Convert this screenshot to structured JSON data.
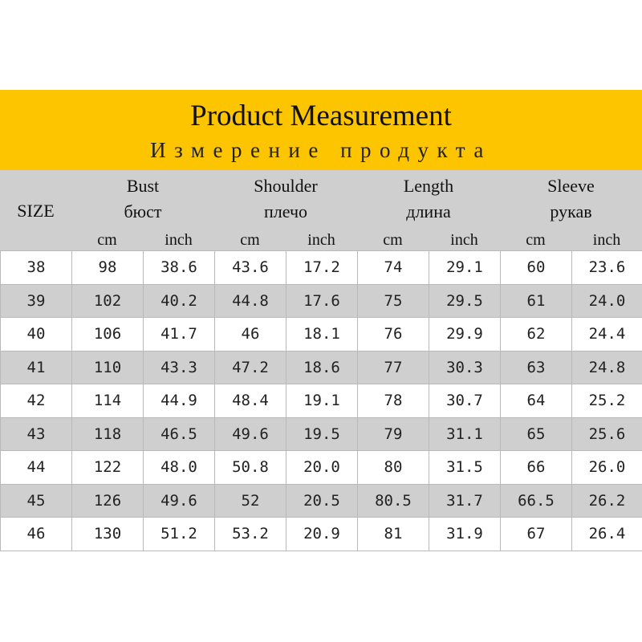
{
  "header": {
    "title": "Product Measurement",
    "subtitle": "Измерение продукта",
    "size_label": "SIZE",
    "groups": [
      {
        "name": "Bust",
        "name_ru": "бюст"
      },
      {
        "name": "Shoulder",
        "name_ru": "плечо"
      },
      {
        "name": "Length",
        "name_ru": "длина"
      },
      {
        "name": "Sleeve",
        "name_ru": "рукав"
      }
    ],
    "units": [
      "cm",
      "inch",
      "cm",
      "inch",
      "cm",
      "inch",
      "cm",
      "inch"
    ]
  },
  "rows": [
    [
      "38",
      "98",
      "38.6",
      "43.6",
      "17.2",
      "74",
      "29.1",
      "60",
      "23.6"
    ],
    [
      "39",
      "102",
      "40.2",
      "44.8",
      "17.6",
      "75",
      "29.5",
      "61",
      "24.0"
    ],
    [
      "40",
      "106",
      "41.7",
      "46",
      "18.1",
      "76",
      "29.9",
      "62",
      "24.4"
    ],
    [
      "41",
      "110",
      "43.3",
      "47.2",
      "18.6",
      "77",
      "30.3",
      "63",
      "24.8"
    ],
    [
      "42",
      "114",
      "44.9",
      "48.4",
      "19.1",
      "78",
      "30.7",
      "64",
      "25.2"
    ],
    [
      "43",
      "118",
      "46.5",
      "49.6",
      "19.5",
      "79",
      "31.1",
      "65",
      "25.6"
    ],
    [
      "44",
      "122",
      "48.0",
      "50.8",
      "20.0",
      "80",
      "31.5",
      "66",
      "26.0"
    ],
    [
      "45",
      "126",
      "49.6",
      "52",
      "20.5",
      "80.5",
      "31.7",
      "66.5",
      "26.2"
    ],
    [
      "46",
      "130",
      "51.2",
      "53.2",
      "20.9",
      "81",
      "31.9",
      "67",
      "26.4"
    ]
  ],
  "colors": {
    "banner": "#fdc400",
    "header_bg": "#cfcfcf",
    "alt_row": "#cfcfcf",
    "border": "#b9b9b9"
  }
}
